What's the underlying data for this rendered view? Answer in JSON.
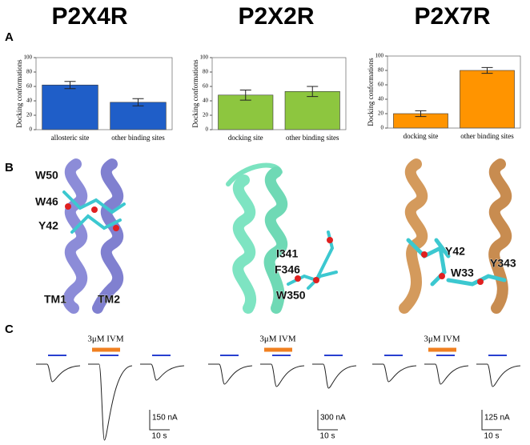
{
  "headings": [
    "P2X4R",
    "P2X2R",
    "P2X7R"
  ],
  "panel_labels": [
    "A",
    "B",
    "C"
  ],
  "chart_data": [
    {
      "type": "bar",
      "ylabel": "Docking conformations",
      "categories": [
        "allosteric site",
        "other binding sites"
      ],
      "values": [
        62,
        38
      ],
      "errors": [
        5,
        5
      ],
      "color": "#1f5ec8",
      "ylim": [
        0,
        100
      ],
      "yticks": [
        0,
        20,
        40,
        60,
        80,
        100
      ]
    },
    {
      "type": "bar",
      "ylabel": "Docking conformations",
      "categories": [
        "docking site",
        "other binding sites"
      ],
      "values": [
        48,
        53
      ],
      "errors": [
        7,
        7
      ],
      "color": "#8dc63f",
      "ylim": [
        0,
        100
      ],
      "yticks": [
        0,
        20,
        40,
        60,
        80,
        100
      ]
    },
    {
      "type": "bar",
      "ylabel": "Docking conformations",
      "categories": [
        "docking site",
        "other binding sites"
      ],
      "values": [
        20,
        80
      ],
      "errors": [
        4,
        4
      ],
      "color": "#ff9400",
      "ylim": [
        0,
        100
      ],
      "yticks": [
        0,
        20,
        40,
        60,
        80,
        100
      ]
    }
  ],
  "panel_b": {
    "p2x4r": [
      "W50",
      "W46",
      "Y42",
      "TM1",
      "TM2"
    ],
    "p2x2r": [
      "I341",
      "F346",
      "W350"
    ],
    "p2x7r": [
      "Y42",
      "W33",
      "Y343"
    ]
  },
  "panel_c": {
    "drug": [
      "3μM IVM",
      "3μM IVM",
      "3μM IVM"
    ],
    "current_scale": [
      "150 nA",
      "300 nA",
      "125 nA"
    ],
    "time_scale": [
      "10 s",
      "10 s",
      "10 s"
    ]
  }
}
